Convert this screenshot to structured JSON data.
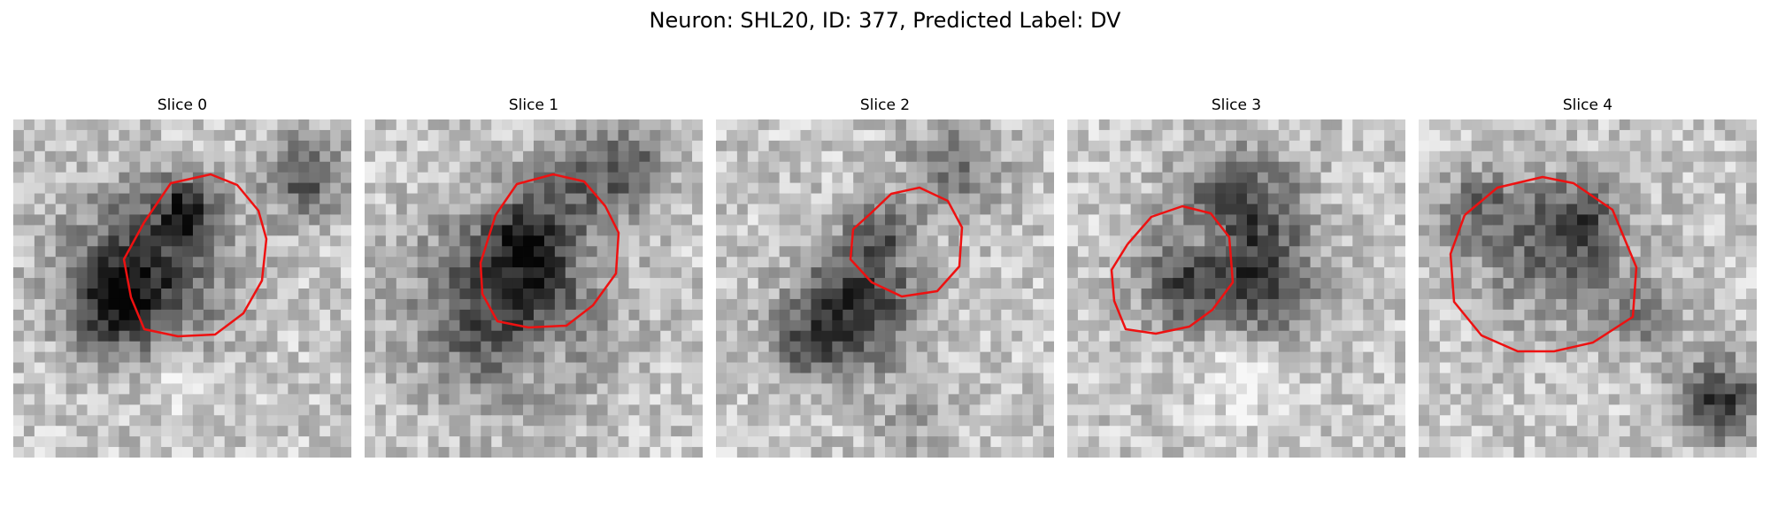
{
  "figure": {
    "title": "Neuron: SHL20, ID: 377, Predicted Label: DV",
    "roi_color": "#ee1111"
  },
  "panels": [
    {
      "title": "Slice 0"
    },
    {
      "title": "Slice 1"
    },
    {
      "title": "Slice 2"
    },
    {
      "title": "Slice 3"
    },
    {
      "title": "Slice 4"
    }
  ]
}
